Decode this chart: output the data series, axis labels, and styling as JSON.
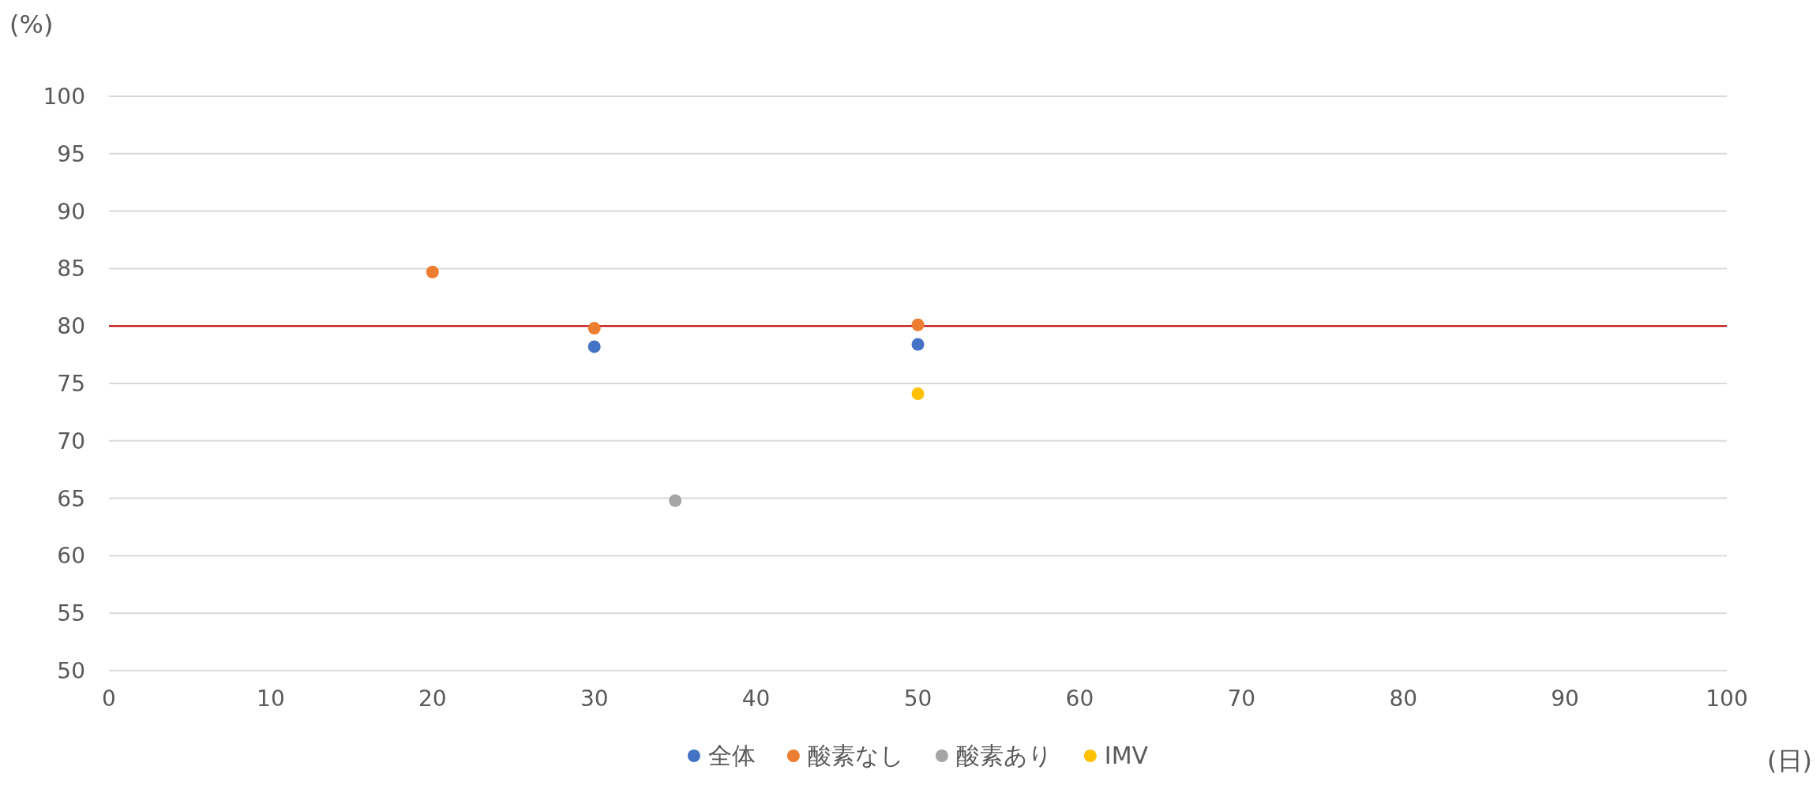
{
  "chart_data": {
    "type": "scatter",
    "xlabel": "(日)",
    "ylabel": "(%)",
    "xlim": [
      0,
      100
    ],
    "xticks": [
      0,
      10,
      20,
      30,
      40,
      50,
      60,
      70,
      80,
      90,
      100
    ],
    "ylim": [
      50,
      100
    ],
    "yticks": [
      50,
      55,
      60,
      65,
      70,
      75,
      80,
      85,
      90,
      95,
      100
    ],
    "grid": "y",
    "legend": "bottom",
    "marker": "circle",
    "ref_lines": [
      {
        "axis": "y",
        "value": 80,
        "color": "#c00000"
      }
    ],
    "series": [
      {
        "name": "全体",
        "color": "#4472c4",
        "x": [
          30,
          50
        ],
        "values": [
          78.2,
          78.4
        ]
      },
      {
        "name": "酸素なし",
        "color": "#ed7d31",
        "x": [
          20,
          30,
          50
        ],
        "values": [
          84.7,
          79.8,
          80.1
        ]
      },
      {
        "name": "酸素あり",
        "color": "#a5a5a5",
        "x": [
          35
        ],
        "values": [
          64.8
        ]
      },
      {
        "name": "IMV",
        "color": "#ffc000",
        "x": [
          50
        ],
        "values": [
          74.1
        ]
      }
    ]
  }
}
